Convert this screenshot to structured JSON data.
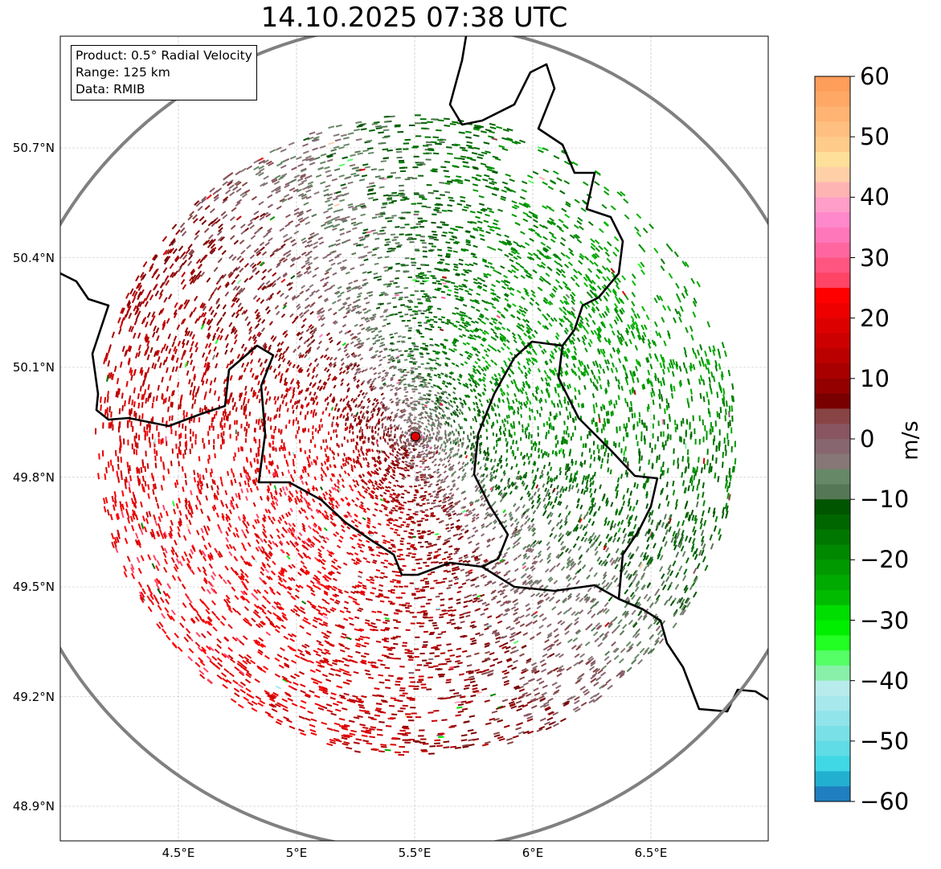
{
  "title": "14.10.2025 07:38 UTC",
  "info_box": {
    "product": "Product: 0.5° Radial Velocity",
    "range": "Range: 125 km",
    "data": "Data: RMIB"
  },
  "axes": {
    "lon_ticks": [
      {
        "value": 4.5,
        "label": "4.5°E"
      },
      {
        "value": 5.0,
        "label": "5°E"
      },
      {
        "value": 5.5,
        "label": "5.5°E"
      },
      {
        "value": 6.0,
        "label": "6°E"
      },
      {
        "value": 6.5,
        "label": "6.5°E"
      }
    ],
    "lat_ticks": [
      {
        "value": 50.7,
        "label": "50.7°N"
      },
      {
        "value": 50.4,
        "label": "50.4°N"
      },
      {
        "value": 50.1,
        "label": "50.1°N"
      },
      {
        "value": 49.8,
        "label": "49.8°N"
      },
      {
        "value": 49.5,
        "label": "49.5°N"
      },
      {
        "value": 49.2,
        "label": "49.2°N"
      },
      {
        "value": 48.9,
        "label": "48.9°N"
      }
    ]
  },
  "radar_site": {
    "lon": 5.5,
    "lat": 49.914,
    "range_km": 125
  },
  "colorbar": {
    "label": "m/s",
    "min": -60,
    "max": 60,
    "ticks": [
      {
        "value": 60,
        "label": "60"
      },
      {
        "value": 50,
        "label": "50"
      },
      {
        "value": 40,
        "label": "40"
      },
      {
        "value": 30,
        "label": "30"
      },
      {
        "value": 20,
        "label": "20"
      },
      {
        "value": 10,
        "label": "10"
      },
      {
        "value": 0,
        "label": "0"
      },
      {
        "value": -10,
        "label": "−10"
      },
      {
        "value": -20,
        "label": "−20"
      },
      {
        "value": -30,
        "label": "−30"
      },
      {
        "value": -40,
        "label": "−40"
      },
      {
        "value": -50,
        "label": "−50"
      },
      {
        "value": -60,
        "label": "−60"
      }
    ],
    "colors_top_to_bottom": [
      "#ff9d5a",
      "#ffa866",
      "#ffb474",
      "#ffbf80",
      "#ffcb8a",
      "#ffe09a",
      "#ffd0a8",
      "#ffb4b4",
      "#ff9ec8",
      "#ff88cc",
      "#ff77bb",
      "#ff66a0",
      "#ff5580",
      "#ff4466",
      "#ff0000",
      "#ee0000",
      "#dd0000",
      "#cc0000",
      "#bb0000",
      "#a80000",
      "#940000",
      "#7a0000",
      "#884444",
      "#885560",
      "#886670",
      "#887777",
      "#668866",
      "#557755",
      "#005500",
      "#006600",
      "#007700",
      "#008800",
      "#009900",
      "#00aa00",
      "#00bb00",
      "#00dd00",
      "#00ee00",
      "#22ff22",
      "#55ff66",
      "#88f0a8",
      "#b8ecec",
      "#a6e8ec",
      "#90e4ea",
      "#7ae0e8",
      "#60dce6",
      "#40d8e4",
      "#22b0d0",
      "#1f7fc0"
    ]
  }
}
